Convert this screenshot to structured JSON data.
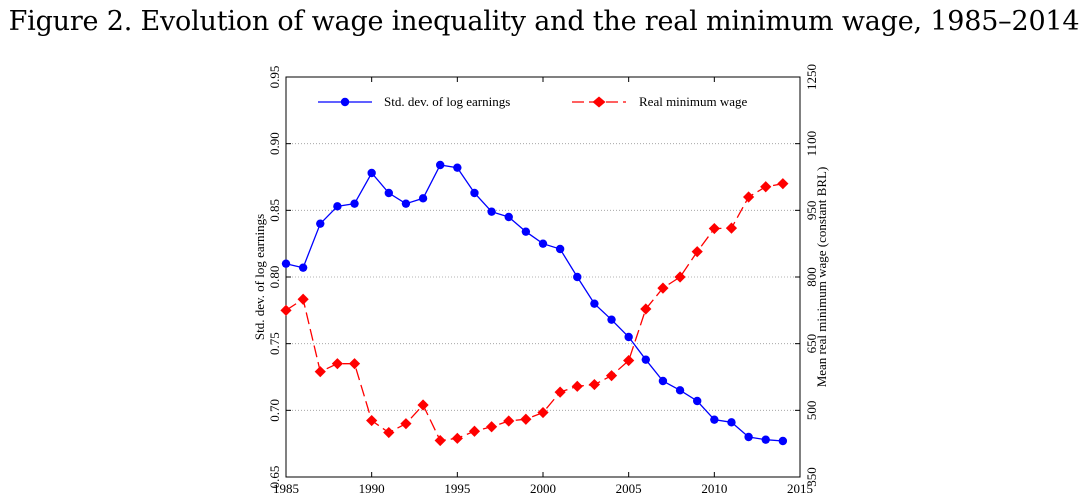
{
  "title": "Figure 2. Evolution of wage inequality and the real minimum wage, 1985–2014",
  "chart_data": {
    "type": "line",
    "x": [
      1985,
      1986,
      1987,
      1988,
      1989,
      1990,
      1991,
      1992,
      1993,
      1994,
      1995,
      1996,
      1997,
      1998,
      1999,
      2000,
      2001,
      2002,
      2003,
      2004,
      2005,
      2006,
      2007,
      2008,
      2009,
      2010,
      2011,
      2012,
      2013,
      2014
    ],
    "x_axis": {
      "range": [
        1985,
        2015
      ],
      "ticks": [
        "1985",
        "1990",
        "1995",
        "2000",
        "2005",
        "2010",
        "2015"
      ]
    },
    "y_left": {
      "label": "Std. dev. of log earnings",
      "range": [
        0.65,
        0.95
      ],
      "ticks": [
        "0.65",
        "0.70",
        "0.75",
        "0.80",
        "0.85",
        "0.90",
        "0.95"
      ]
    },
    "y_right": {
      "label": "Mean real minimum wage (constant BRL)",
      "range": [
        350,
        1250
      ],
      "ticks": [
        "350",
        "500",
        "650",
        "800",
        "950",
        "1100",
        "1250"
      ]
    },
    "grid": "dotted horizontal",
    "legend_position": "top",
    "series": [
      {
        "name": "Std. dev. of log earnings",
        "axis": "left",
        "color": "#0000ff",
        "marker": "circle",
        "line": "solid",
        "values": [
          0.81,
          0.807,
          0.84,
          0.853,
          0.855,
          0.878,
          0.863,
          0.855,
          0.859,
          0.884,
          0.882,
          0.863,
          0.849,
          0.845,
          0.834,
          0.825,
          0.821,
          0.8,
          0.78,
          0.768,
          0.755,
          0.738,
          0.722,
          0.715,
          0.707,
          0.693,
          0.691,
          0.68,
          0.678,
          0.677
        ]
      },
      {
        "name": "Real minimum wage",
        "axis": "right",
        "color": "#ff0000",
        "marker": "diamond",
        "line": "dashed",
        "values": [
          725,
          750,
          587,
          605,
          605,
          477,
          450,
          470,
          512,
          432,
          437,
          453,
          463,
          476,
          480,
          495,
          541,
          554,
          558,
          578,
          612,
          728,
          775,
          800,
          857,
          909,
          910,
          980,
          1003,
          1010
        ]
      }
    ]
  }
}
